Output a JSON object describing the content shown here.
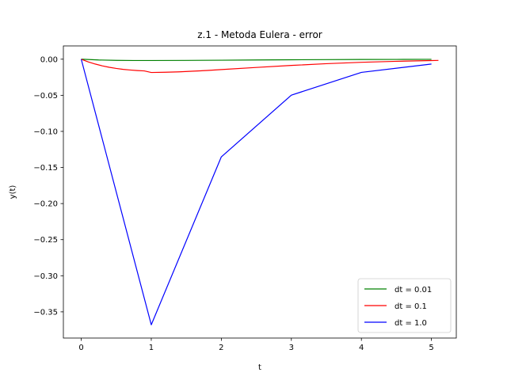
{
  "chart_data": {
    "type": "line",
    "title": "z.1 - Metoda Eulera - error",
    "xlabel": "t",
    "ylabel": "y(t)",
    "xlim": [
      -0.255,
      5.355
    ],
    "ylim": [
      -0.3863,
      0.0184
    ],
    "xticks": [
      0,
      1,
      2,
      3,
      4,
      5
    ],
    "xtick_labels": [
      "0",
      "1",
      "2",
      "3",
      "4",
      "5"
    ],
    "yticks": [
      0.0,
      -0.05,
      -0.1,
      -0.15,
      -0.2,
      -0.25,
      -0.3,
      -0.35
    ],
    "ytick_labels": [
      "0.00",
      "−0.05",
      "−0.10",
      "−0.15",
      "−0.20",
      "−0.25",
      "−0.30",
      "−0.35"
    ],
    "grid": false,
    "legend_position": "lower-right",
    "series": [
      {
        "name": "dt = 0.01",
        "color": "#008000",
        "x": [
          0,
          0.25,
          0.5,
          0.75,
          1.0,
          1.5,
          2.0,
          2.5,
          3.0,
          3.5,
          4.0,
          4.5,
          5.0
        ],
        "y": [
          0,
          -0.0011,
          -0.0016,
          -0.0018,
          -0.0018,
          -0.0017,
          -0.0014,
          -0.0011,
          -0.0008,
          -0.0006,
          -0.0004,
          -0.0003,
          -0.0002
        ]
      },
      {
        "name": "dt = 0.1",
        "color": "#ff0000",
        "x": [
          0,
          0.1,
          0.2,
          0.3,
          0.4,
          0.5,
          0.6,
          0.7,
          0.8,
          0.9,
          1.0,
          1.2,
          1.4,
          1.6,
          1.8,
          2.0,
          2.5,
          3.0,
          3.5,
          4.0,
          4.5,
          5.0,
          5.1
        ],
        "y": [
          0,
          -0.0037,
          -0.0067,
          -0.0092,
          -0.0112,
          -0.0128,
          -0.0141,
          -0.015,
          -0.0157,
          -0.0162,
          -0.0184,
          -0.0181,
          -0.0175,
          -0.0166,
          -0.0156,
          -0.0144,
          -0.0114,
          -0.0086,
          -0.0062,
          -0.0043,
          -0.0029,
          -0.0019,
          -0.0017
        ]
      },
      {
        "name": "dt = 1.0",
        "color": "#0000ff",
        "x": [
          0,
          1,
          2,
          3,
          4,
          5
        ],
        "y": [
          0,
          -0.3679,
          -0.1353,
          -0.0498,
          -0.0183,
          -0.0067
        ]
      }
    ]
  }
}
